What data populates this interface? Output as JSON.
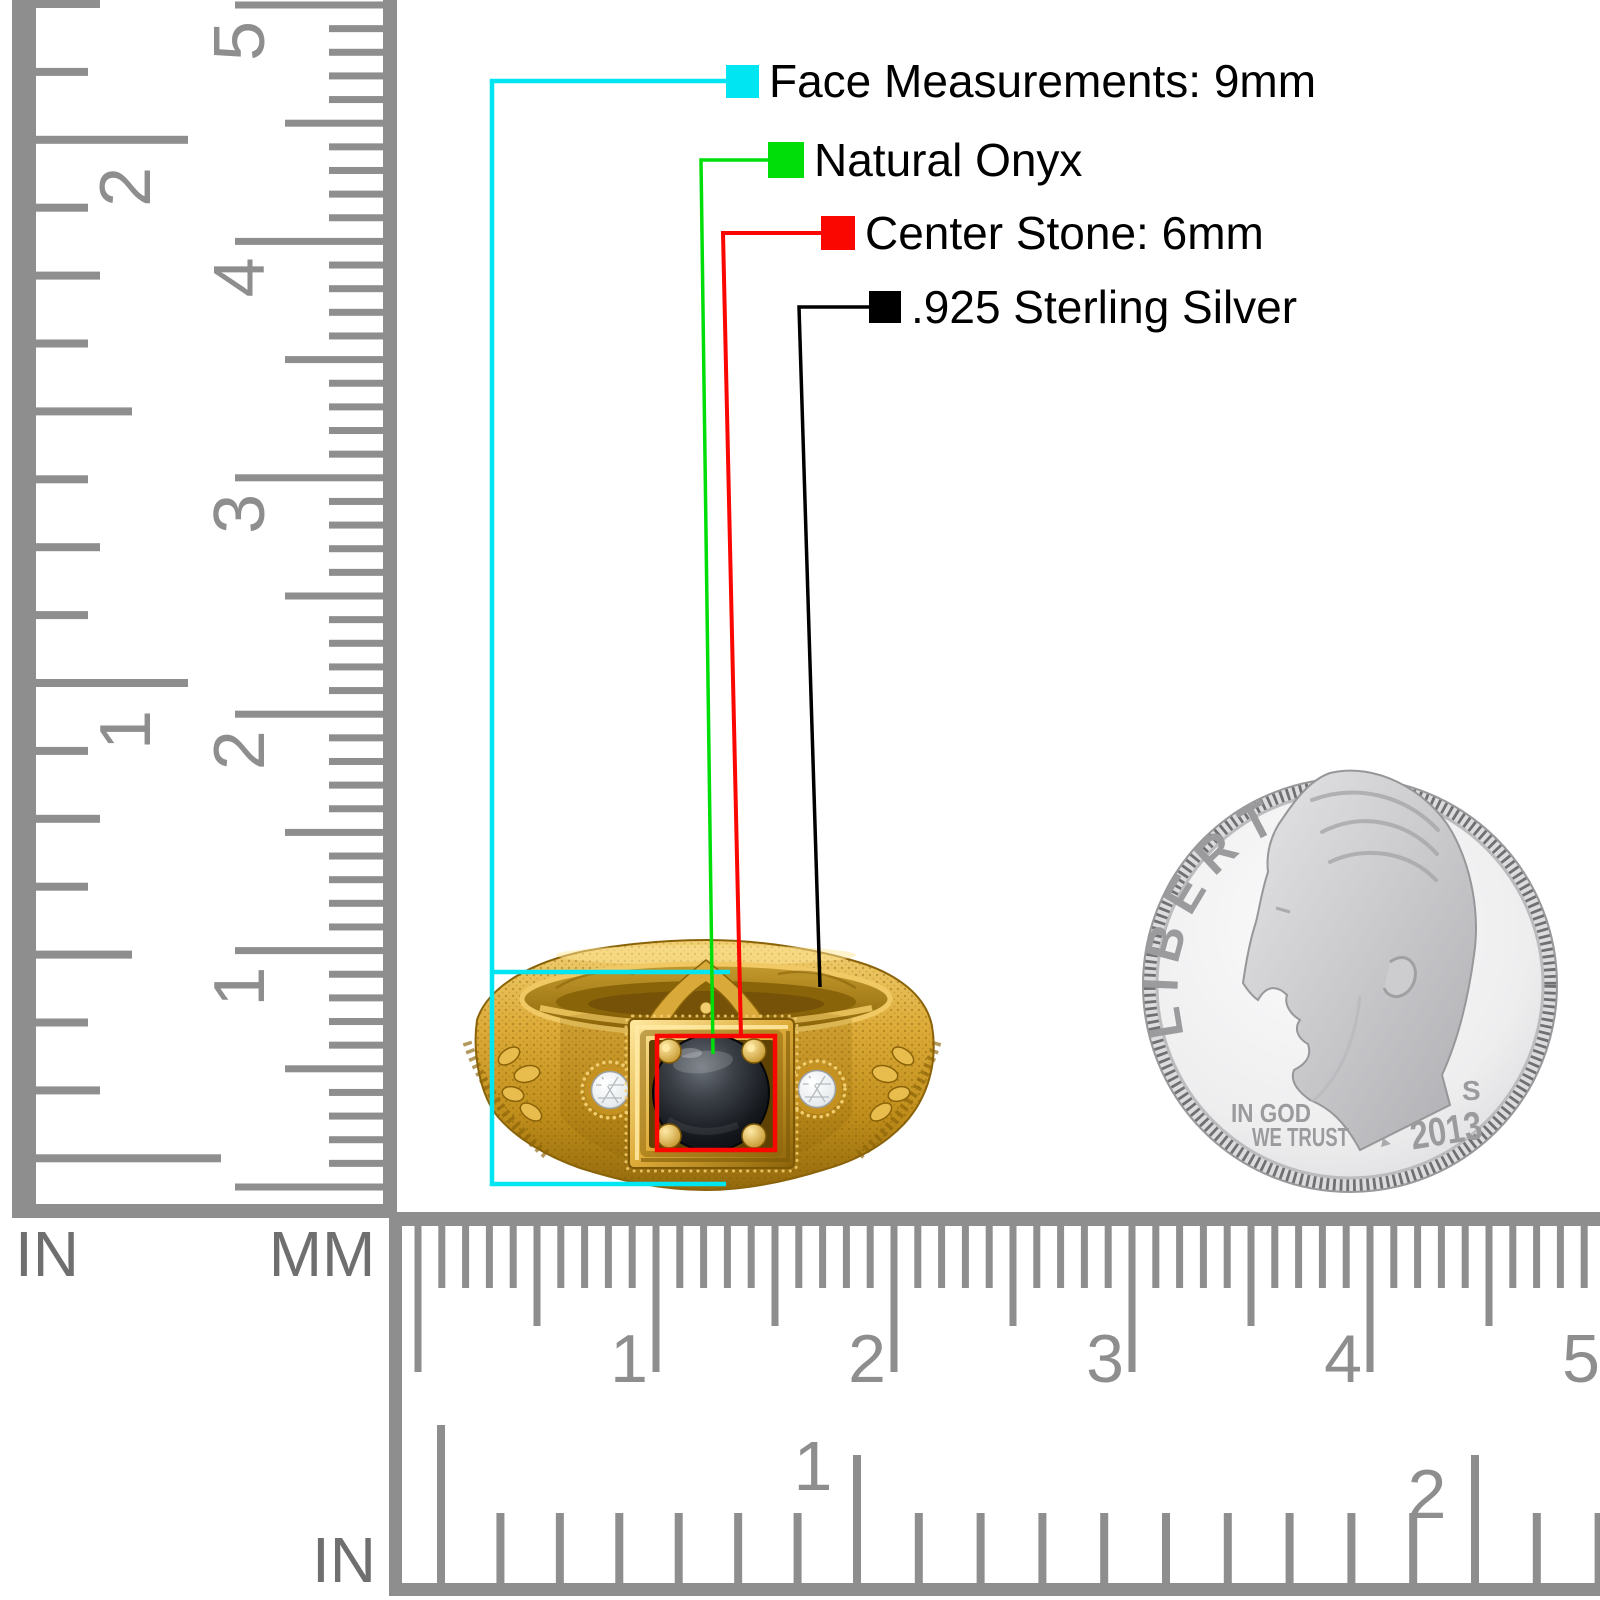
{
  "legend": {
    "items": [
      {
        "id": "face",
        "label": "Face Measurements: 9mm",
        "color": "#00E5F2"
      },
      {
        "id": "onyx",
        "label": "Natural Onyx",
        "color": "#00DE0A"
      },
      {
        "id": "center",
        "label": "Center Stone: 6mm",
        "color": "#FA0702"
      },
      {
        "id": "silver",
        "label": ".925 Sterling Silver",
        "color": "#000000"
      }
    ]
  },
  "rulers": {
    "unit_inch": "IN",
    "unit_mm": "MM",
    "vertical": {
      "inch_labels": [
        "2",
        "1"
      ],
      "cm_labels": [
        "5",
        "4",
        "3",
        "2",
        "1"
      ]
    },
    "bottom": {
      "cm_labels": [
        "1",
        "2",
        "3",
        "4",
        "5"
      ],
      "inch_labels": [
        "1",
        "2"
      ],
      "unit_inch": "IN"
    }
  },
  "coin": {
    "inscription_arc": "LIBERTY",
    "motto_line1": "IN GOD",
    "motto_line2": "WE TRUST",
    "mint_mark": "S",
    "year": "2013"
  },
  "colors": {
    "ruler_gray": "#8E8E8E",
    "unit_label_gray": "#6F6F6F",
    "ring_gold": "#D8A733",
    "onyx_black": "#0B0E13",
    "coin_silver": "#E8E8EA",
    "background": "#FFFFFF"
  }
}
